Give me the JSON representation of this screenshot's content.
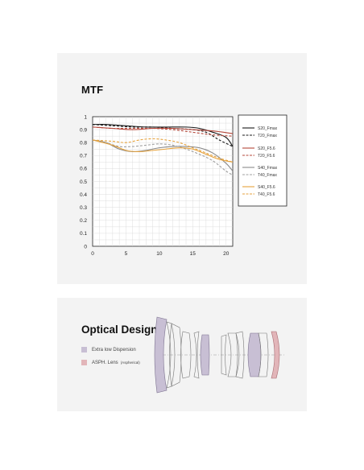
{
  "mtf": {
    "title": "MTF"
  },
  "chart_data": {
    "type": "line",
    "title": "MTF",
    "xlabel": "",
    "ylabel": "",
    "xlim": [
      0,
      21
    ],
    "ylim": [
      0,
      1
    ],
    "x_ticks": [
      "0",
      "5",
      "10",
      "15",
      "20"
    ],
    "y_ticks": [
      "0",
      "0.1",
      "0.2",
      "0.3",
      "0.4",
      "0.5",
      "0.6",
      "0.7",
      "0.8",
      "0.9",
      "1"
    ],
    "grid": true,
    "legend_position": "right",
    "series": [
      {
        "name": "S20_Fmax",
        "color": "#1a1a1a",
        "dash": "solid",
        "points": [
          [
            0,
            0.94
          ],
          [
            2,
            0.94
          ],
          [
            5,
            0.93
          ],
          [
            8,
            0.92
          ],
          [
            11,
            0.92
          ],
          [
            14,
            0.92
          ],
          [
            16,
            0.91
          ],
          [
            18,
            0.88
          ],
          [
            20,
            0.84
          ],
          [
            21,
            0.77
          ]
        ]
      },
      {
        "name": "T20_Fmax",
        "color": "#1a1a1a",
        "dash": "dashed",
        "points": [
          [
            0,
            0.94
          ],
          [
            3,
            0.93
          ],
          [
            6,
            0.92
          ],
          [
            9,
            0.92
          ],
          [
            12,
            0.91
          ],
          [
            15,
            0.9
          ],
          [
            17,
            0.88
          ],
          [
            19,
            0.82
          ],
          [
            21,
            0.77
          ]
        ]
      },
      {
        "name": "S20_F5.6",
        "color": "#b5473a",
        "dash": "solid",
        "points": [
          [
            0,
            0.92
          ],
          [
            3,
            0.91
          ],
          [
            6,
            0.9
          ],
          [
            9,
            0.91
          ],
          [
            12,
            0.91
          ],
          [
            15,
            0.9
          ],
          [
            18,
            0.89
          ],
          [
            21,
            0.87
          ]
        ]
      },
      {
        "name": "T20_F5.6",
        "color": "#b5473a",
        "dash": "dashed",
        "points": [
          [
            0,
            0.92
          ],
          [
            3,
            0.91
          ],
          [
            6,
            0.91
          ],
          [
            9,
            0.91
          ],
          [
            12,
            0.9
          ],
          [
            15,
            0.88
          ],
          [
            18,
            0.86
          ],
          [
            21,
            0.85
          ]
        ]
      },
      {
        "name": "S40_Fmax",
        "color": "#8a8a8a",
        "dash": "solid",
        "points": [
          [
            0,
            0.82
          ],
          [
            2,
            0.8
          ],
          [
            4,
            0.75
          ],
          [
            6,
            0.73
          ],
          [
            8,
            0.74
          ],
          [
            10,
            0.76
          ],
          [
            12,
            0.77
          ],
          [
            14,
            0.77
          ],
          [
            16,
            0.76
          ],
          [
            18,
            0.72
          ],
          [
            20,
            0.64
          ],
          [
            21,
            0.58
          ]
        ]
      },
      {
        "name": "T40_Fmax",
        "color": "#a0a0a0",
        "dash": "dashed",
        "points": [
          [
            0,
            0.82
          ],
          [
            2,
            0.8
          ],
          [
            4,
            0.77
          ],
          [
            6,
            0.77
          ],
          [
            8,
            0.78
          ],
          [
            10,
            0.79
          ],
          [
            12,
            0.78
          ],
          [
            14,
            0.75
          ],
          [
            16,
            0.71
          ],
          [
            18,
            0.66
          ],
          [
            20,
            0.58
          ],
          [
            21,
            0.55
          ]
        ]
      },
      {
        "name": "S40_F5.6",
        "color": "#e6a23c",
        "dash": "solid",
        "points": [
          [
            0,
            0.82
          ],
          [
            3,
            0.78
          ],
          [
            5,
            0.74
          ],
          [
            7,
            0.73
          ],
          [
            9,
            0.74
          ],
          [
            11,
            0.75
          ],
          [
            13,
            0.76
          ],
          [
            15,
            0.75
          ],
          [
            17,
            0.71
          ],
          [
            19,
            0.67
          ],
          [
            21,
            0.65
          ]
        ]
      },
      {
        "name": "T40_F5.6",
        "color": "#e6a23c",
        "dash": "dashed",
        "points": [
          [
            0,
            0.82
          ],
          [
            3,
            0.81
          ],
          [
            5,
            0.8
          ],
          [
            7,
            0.82
          ],
          [
            9,
            0.83
          ],
          [
            11,
            0.82
          ],
          [
            13,
            0.8
          ],
          [
            15,
            0.76
          ],
          [
            17,
            0.72
          ],
          [
            19,
            0.68
          ],
          [
            21,
            0.65
          ]
        ]
      }
    ]
  },
  "optics": {
    "title": "Optical Design",
    "legend": [
      {
        "label": "Extra low Dispersion",
        "sub": "",
        "color": "#c8bfd4"
      },
      {
        "label": "ASPH. Lens",
        "sub": "(Aspherical)",
        "color": "#e2b5b9"
      }
    ]
  }
}
